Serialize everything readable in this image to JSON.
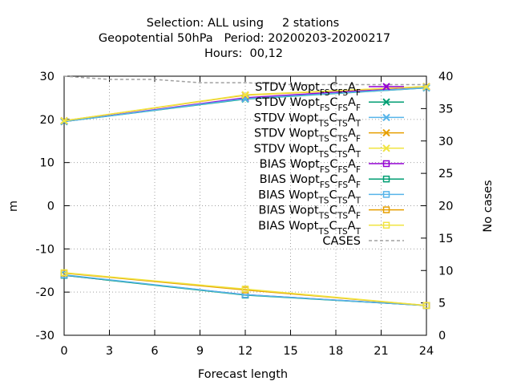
{
  "chart_data": {
    "type": "line",
    "title": [
      "Selection: ALL using     2 stations",
      "Geopotential 50hPa   Period: 20200203-20200217",
      "Hours:  00,12"
    ],
    "xlabel": "Forecast length",
    "ylabel": "m",
    "y2label": "No cases",
    "xlim": [
      0,
      24
    ],
    "ylim": [
      -30,
      30
    ],
    "y2lim": [
      0,
      40
    ],
    "xticks": [
      0,
      3,
      6,
      9,
      12,
      15,
      18,
      21,
      24
    ],
    "yticks": [
      -30,
      -20,
      -10,
      0,
      10,
      20,
      30
    ],
    "y2ticks": [
      0,
      5,
      10,
      15,
      20,
      25,
      30,
      35,
      40
    ],
    "grid": true,
    "legend_position": "top-right",
    "x": [
      0,
      12,
      24
    ],
    "series": [
      {
        "stat": "STDV",
        "sub1": "FS",
        "sub2": "F",
        "color": "#9400d3",
        "marker": "x",
        "axis": "y",
        "values": [
          19.5,
          25.0,
          27.6
        ]
      },
      {
        "stat": "STDV",
        "sub1": "FS",
        "sub2": "F",
        "color": "#009e73",
        "marker": "x",
        "axis": "y",
        "values": [
          19.5,
          24.7,
          27.3
        ]
      },
      {
        "stat": "STDV",
        "sub1": "TS",
        "sub2": "T",
        "color": "#56b4e9",
        "marker": "x",
        "axis": "y",
        "values": [
          19.5,
          24.8,
          27.3
        ]
      },
      {
        "stat": "STDV",
        "sub1": "TS",
        "sub2": "F",
        "color": "#e69f00",
        "marker": "x",
        "axis": "y",
        "values": [
          19.7,
          25.6,
          27.6
        ]
      },
      {
        "stat": "STDV",
        "sub1": "TS",
        "sub2": "T",
        "color": "#f0e442",
        "marker": "x",
        "axis": "y",
        "values": [
          19.7,
          25.7,
          27.6
        ]
      },
      {
        "stat": "BIAS",
        "sub1": "FS",
        "sub2": "F",
        "color": "#9400d3",
        "marker": "square",
        "axis": "y",
        "values": [
          -16.1,
          -20.6,
          -23.1
        ]
      },
      {
        "stat": "BIAS",
        "sub1": "FS",
        "sub2": "F",
        "color": "#009e73",
        "marker": "square",
        "axis": "y",
        "values": [
          -16.1,
          -20.7,
          -23.1
        ]
      },
      {
        "stat": "BIAS",
        "sub1": "TS",
        "sub2": "T",
        "color": "#56b4e9",
        "marker": "square",
        "axis": "y",
        "values": [
          -16.0,
          -20.6,
          -23.1
        ]
      },
      {
        "stat": "BIAS",
        "sub1": "TS",
        "sub2": "F",
        "color": "#e69f00",
        "marker": "square",
        "axis": "y",
        "values": [
          -15.6,
          -19.5,
          -23.1
        ]
      },
      {
        "stat": "BIAS",
        "sub1": "TS",
        "sub2": "T",
        "color": "#f0e442",
        "marker": "square",
        "axis": "y",
        "values": [
          -15.5,
          -19.3,
          -23.1
        ]
      },
      {
        "name": "CASES",
        "color": "#a0a0a0",
        "marker": "none",
        "dash": true,
        "axis": "y2",
        "x": [
          0,
          3,
          6,
          9,
          12,
          15,
          18,
          21,
          24
        ],
        "values": [
          40,
          39.5,
          39.5,
          39,
          39,
          38.7,
          38.7,
          38.7,
          38.7
        ]
      }
    ],
    "legend_word": "Wopt",
    "legend_mid": "C"
  }
}
